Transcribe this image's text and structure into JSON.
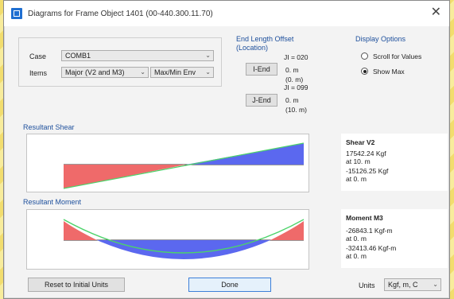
{
  "window": {
    "title": "Diagrams for Frame Object 1401 (00-440.300.11.70)"
  },
  "top": {
    "case_label": "Case",
    "case_value": "COMB1",
    "items_label": "Items",
    "items_value": "Major (V2 and M3)",
    "items_option": "Max/Min Env"
  },
  "end_length": {
    "title_line1": "End Length Offset",
    "title_line2": "(Location)",
    "i_value": "I-End",
    "i_distance": "0. m",
    "i_location": "(0. m)",
    "i_label": "JI = 020",
    "j_label": "JI = 099",
    "j_value": "J-End",
    "j_distance": "0. m",
    "j_location": "(10. m)"
  },
  "display_options": {
    "title": "Display Options",
    "option1": "Scroll for Values",
    "option2": "Show Max",
    "selected": "Show Max"
  },
  "shear": {
    "section_title": "Resultant Shear",
    "info_title": "Shear V2",
    "line1": "17542.24 Kgf",
    "line2": "at 10. m",
    "line3": "-15126.25 Kgf",
    "line4": "at 0. m"
  },
  "moment": {
    "section_title": "Resultant Moment",
    "info_title": "Moment M3",
    "line1": "-26843.1 Kgf-m",
    "line2": "at 0. m",
    "line3": "-32413.46 Kgf-m",
    "line4": "at 0. m"
  },
  "footer": {
    "reset_button": "Reset to Initial Units",
    "done_button": "Done",
    "units_label": "Units",
    "units_value": "Kgf, m, C"
  },
  "colors": {
    "positive": "#ef6a6a",
    "negative": "#5b68ef",
    "envelope": "#4cd36a",
    "group_title": "#1d4f9c"
  }
}
